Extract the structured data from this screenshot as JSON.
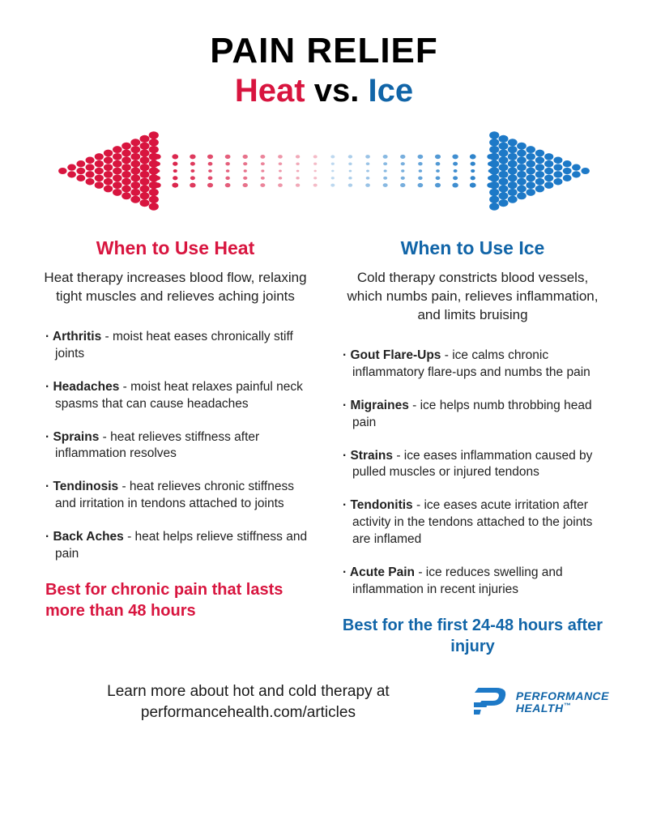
{
  "title": "PAIN RELIEF",
  "subtitle": {
    "heat": "Heat",
    "vs": "vs.",
    "ice": "Ice"
  },
  "colors": {
    "heat": "#d8153f",
    "ice": "#1165a8",
    "iceBright": "#1d79c7",
    "text": "#222222",
    "bg": "#ffffff"
  },
  "heat": {
    "title": "When to Use Heat",
    "intro": "Heat therapy increases blood flow, relaxing tight muscles and relieves aching joints",
    "items": [
      {
        "term": "Arthritis",
        "desc": "moist heat eases chronically stiff joints"
      },
      {
        "term": "Headaches",
        "desc": "moist heat relaxes painful neck spasms that can cause headaches"
      },
      {
        "term": "Sprains",
        "desc": "heat relieves stiffness after inflammation resolves"
      },
      {
        "term": "Tendinosis",
        "desc": "heat relieves chronic stiffness and irritation in tendons attached to joints"
      },
      {
        "term": "Back Aches",
        "desc": "heat helps relieve stiffness and pain"
      }
    ],
    "summary": "Best for chronic pain that lasts more than 48 hours"
  },
  "ice": {
    "title": "When to Use Ice",
    "intro": "Cold therapy constricts blood vessels, which numbs pain, relieves inflammation, and limits bruising",
    "items": [
      {
        "term": "Gout Flare-Ups",
        "desc": "ice calms chronic inflammatory flare-ups and numbs the pain"
      },
      {
        "term": "Migraines",
        "desc": "ice helps numb throbbing head pain"
      },
      {
        "term": "Strains",
        "desc": "ice eases inflammation caused by pulled muscles or injured tendons"
      },
      {
        "term": "Tendonitis",
        "desc": "ice eases acute irritation after activity in the tendons attached to the joints are inflamed"
      },
      {
        "term": "Acute Pain",
        "desc": "ice reduces swelling and inflammation in recent injuries"
      }
    ],
    "summary": "Best for the first 24-48 hours after injury"
  },
  "footer": {
    "line1": "Learn more about hot and cold therapy at",
    "line2": "performancehealth.com/articles",
    "brand1": "PERFORMANCE",
    "brand2": "HEALTH"
  },
  "arrow": {
    "shaftRowRadii": [
      2.2,
      2.7,
      3.3
    ],
    "headRadius": 4.8,
    "shaftCols": 20,
    "colSpacing": 14,
    "rowSpacing": 9,
    "headRows": [
      1,
      3,
      5,
      7,
      9,
      11,
      9,
      7,
      5,
      3,
      1
    ],
    "headColSpacing": 11.5,
    "headRowSpacing": 9
  }
}
